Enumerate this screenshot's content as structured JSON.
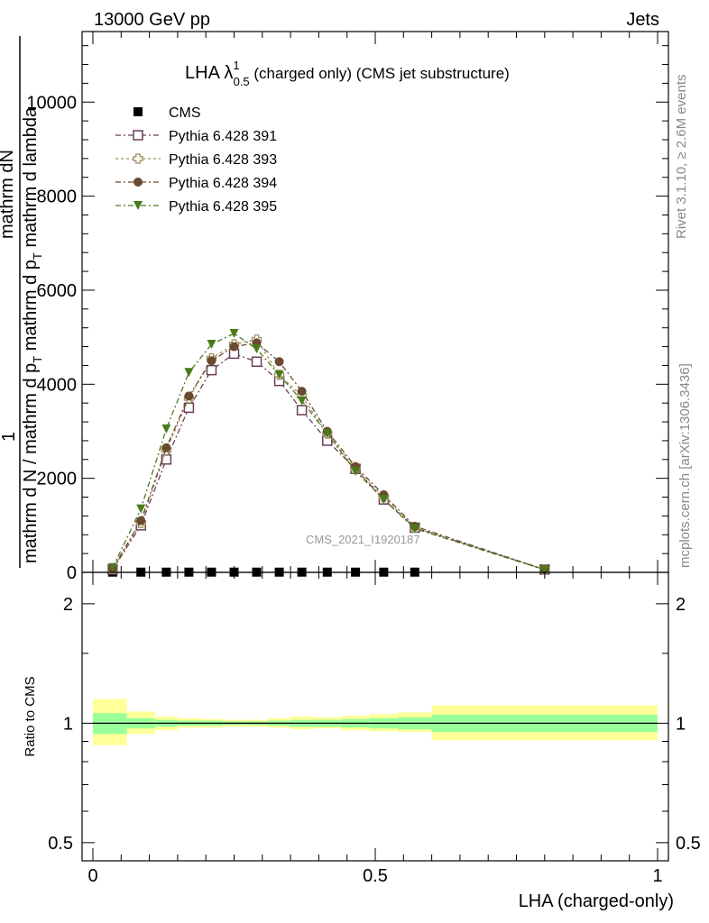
{
  "header": {
    "left": "13000 GeV pp",
    "right": "Jets"
  },
  "side_labels": {
    "rivet": "Rivet 3.1.10, ≥ 2.6M events",
    "mcplots": "mcplots.cern.ch [arXiv:1306.3436]"
  },
  "main_plot": {
    "title_main": "LHA λ",
    "title_sup": "1",
    "title_sub": "0.5",
    "title_rest": " (charged only) (CMS jet substructure)",
    "watermark": "CMS_2021_I1920187",
    "ylabel_numerator_1": "1",
    "ylabel_numerator_2": "mathrm d",
    "ylabel_numerator_3": "N",
    "ylabel_main": "mathrm d N / mathrm d p",
    "ylabel_main_sub": "T",
    "ylabel_main_2": " mathrm d p",
    "ylabel_main_2_sub": "T",
    "ylabel_main_3": " mathrm d lambda",
    "yticks": [
      "0",
      "2000",
      "4000",
      "6000",
      "8000",
      "10000"
    ]
  },
  "ratio_plot": {
    "ylabel": "Ratio to CMS",
    "yticks": [
      "0.5",
      "1",
      "2"
    ],
    "xlabel": "LHA (charged-only)",
    "xticks": [
      "0",
      "0.5",
      "1"
    ]
  },
  "colors": {
    "cms": "#000000",
    "p391": "#6b3e5a",
    "p393": "#a09060",
    "p394": "#6b4a30",
    "p395": "#4a7a1a",
    "band_inner": "#99ff99",
    "band_outer": "#ffff99"
  },
  "chart_data": {
    "type": "line",
    "x_range": [
      0,
      1
    ],
    "y_range": [
      0,
      11500
    ],
    "ratio_range": [
      0.45,
      2.4
    ],
    "legend_position": "top-left",
    "series": [
      {
        "name": "CMS",
        "marker": "filled-square",
        "x": [
          0.035,
          0.085,
          0.13,
          0.17,
          0.21,
          0.25,
          0.29,
          0.33,
          0.37,
          0.415,
          0.465,
          0.515,
          0.57
        ],
        "y": [
          5,
          5,
          5,
          5,
          5,
          5,
          5,
          5,
          5,
          5,
          5,
          5,
          5
        ]
      },
      {
        "name": "Pythia 6.428 391",
        "marker": "open-square",
        "x": [
          0.035,
          0.085,
          0.13,
          0.17,
          0.21,
          0.25,
          0.29,
          0.33,
          0.37,
          0.415,
          0.465,
          0.515,
          0.57,
          0.8
        ],
        "y": [
          60,
          1000,
          2400,
          3500,
          4300,
          4650,
          4480,
          4070,
          3450,
          2800,
          2200,
          1550,
          950,
          60
        ]
      },
      {
        "name": "Pythia 6.428 393",
        "marker": "open-cross",
        "x": [
          0.035,
          0.085,
          0.13,
          0.17,
          0.21,
          0.25,
          0.29,
          0.33,
          0.37,
          0.415,
          0.465,
          0.515,
          0.57,
          0.8
        ],
        "y": [
          70,
          1050,
          2600,
          3700,
          4550,
          4850,
          4950,
          4200,
          3750,
          2950,
          2200,
          1600,
          950,
          60
        ]
      },
      {
        "name": "Pythia 6.428 394",
        "marker": "filled-circle",
        "x": [
          0.035,
          0.085,
          0.13,
          0.17,
          0.21,
          0.25,
          0.29,
          0.33,
          0.37,
          0.415,
          0.465,
          0.515,
          0.57,
          0.8
        ],
        "y": [
          80,
          1100,
          2650,
          3750,
          4500,
          4800,
          4880,
          4480,
          3850,
          3000,
          2250,
          1650,
          980,
          60
        ]
      },
      {
        "name": "Pythia 6.428 395",
        "marker": "filled-triangle-down",
        "x": [
          0.035,
          0.085,
          0.13,
          0.17,
          0.21,
          0.25,
          0.29,
          0.33,
          0.37,
          0.415,
          0.465,
          0.515,
          0.57,
          0.8
        ],
        "y": [
          100,
          1350,
          3050,
          4250,
          4850,
          5080,
          4750,
          4200,
          3650,
          2950,
          2150,
          1550,
          930,
          55
        ]
      }
    ],
    "ratio_bands": {
      "bins": [
        [
          0.0,
          0.06
        ],
        [
          0.06,
          0.11
        ],
        [
          0.11,
          0.15
        ],
        [
          0.15,
          0.19
        ],
        [
          0.19,
          0.23
        ],
        [
          0.23,
          0.27
        ],
        [
          0.27,
          0.31
        ],
        [
          0.31,
          0.35
        ],
        [
          0.35,
          0.39
        ],
        [
          0.39,
          0.44
        ],
        [
          0.44,
          0.49
        ],
        [
          0.49,
          0.54
        ],
        [
          0.54,
          0.6
        ],
        [
          0.6,
          1.0
        ]
      ],
      "inner": [
        [
          0.94,
          1.06
        ],
        [
          0.97,
          1.03
        ],
        [
          0.98,
          1.02
        ],
        [
          0.985,
          1.015
        ],
        [
          0.985,
          1.015
        ],
        [
          0.99,
          1.01
        ],
        [
          0.99,
          1.01
        ],
        [
          0.985,
          1.015
        ],
        [
          0.98,
          1.02
        ],
        [
          0.98,
          1.02
        ],
        [
          0.975,
          1.025
        ],
        [
          0.97,
          1.03
        ],
        [
          0.965,
          1.035
        ],
        [
          0.95,
          1.05
        ]
      ],
      "outer": [
        [
          0.88,
          1.15
        ],
        [
          0.94,
          1.07
        ],
        [
          0.96,
          1.04
        ],
        [
          0.975,
          1.03
        ],
        [
          0.975,
          1.025
        ],
        [
          0.98,
          1.02
        ],
        [
          0.98,
          1.02
        ],
        [
          0.975,
          1.03
        ],
        [
          0.965,
          1.04
        ],
        [
          0.97,
          1.035
        ],
        [
          0.96,
          1.045
        ],
        [
          0.955,
          1.055
        ],
        [
          0.95,
          1.065
        ],
        [
          0.905,
          1.11
        ]
      ]
    }
  }
}
